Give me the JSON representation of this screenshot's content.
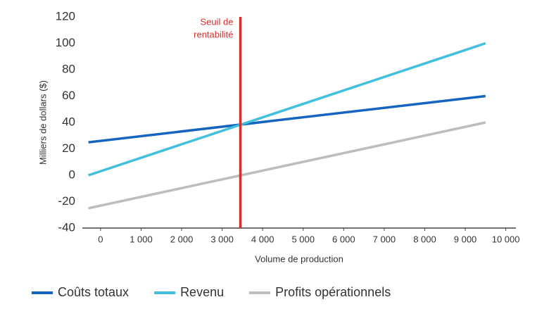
{
  "chart_data": {
    "type": "line",
    "x_label": "Volume de production",
    "y_label": "Milliers de dollars ($)",
    "x": [
      -300,
      9500
    ],
    "series": [
      {
        "name": "Coûts totaux",
        "color": "#1565c0",
        "values": [
          25,
          60
        ]
      },
      {
        "name": "Revenu",
        "color": "#40c0dc",
        "values": [
          0,
          100
        ]
      },
      {
        "name": "Profits opérationnels",
        "color": "#bdbdbd",
        "values": [
          -25,
          40
        ]
      }
    ],
    "annotation": {
      "text": [
        "Seuil de",
        "rentabilité"
      ],
      "x": 3450,
      "color": "#d32f2f"
    },
    "xlim": [
      -450,
      10250
    ],
    "xticks": [
      0,
      {
        "value": 1000,
        "label": "1 000"
      },
      {
        "value": 2000,
        "label": "2 000"
      },
      {
        "value": 3000,
        "label": "3 000"
      },
      {
        "value": 4000,
        "label": "4 000"
      },
      {
        "value": 5000,
        "label": "5 000"
      },
      {
        "value": 6000,
        "label": "6 000"
      },
      {
        "value": 7000,
        "label": "7 000"
      },
      {
        "value": 8000,
        "label": "8 000"
      },
      {
        "value": 9000,
        "label": "9 000"
      },
      {
        "value": 10000,
        "label": "10 000"
      }
    ],
    "ylim": [
      -40,
      120
    ],
    "yticks": [
      -40,
      -20,
      0,
      20,
      40,
      60,
      80,
      100,
      120
    ],
    "grid": false,
    "legend": "bottom"
  }
}
